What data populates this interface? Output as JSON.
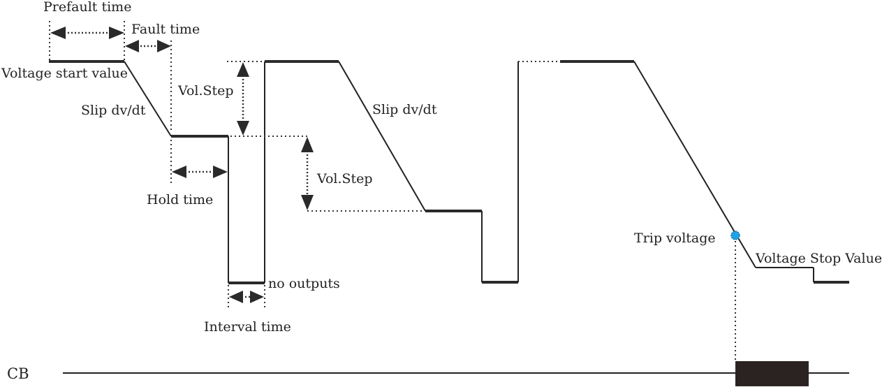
{
  "labels": {
    "prefault_time": "Prefault time",
    "fault_time": "Fault time",
    "voltage_start_value": "Voltage start value",
    "slip_dvdt_1": "Slip dv/dt",
    "vol_step_1": "Vol.Step",
    "slip_dvdt_2": "Slip dv/dt",
    "vol_step_2": "Vol.Step",
    "hold_time": "Hold time",
    "no_outputs": "no outputs",
    "interval_time": "Interval time",
    "trip_voltage": "Trip voltage",
    "voltage_stop_value": "Voltage Stop Value",
    "cb": "CB"
  },
  "colors": {
    "signal": "#222222",
    "trip_marker": "#1fa3e6",
    "cb_block": "#2b2322"
  }
}
